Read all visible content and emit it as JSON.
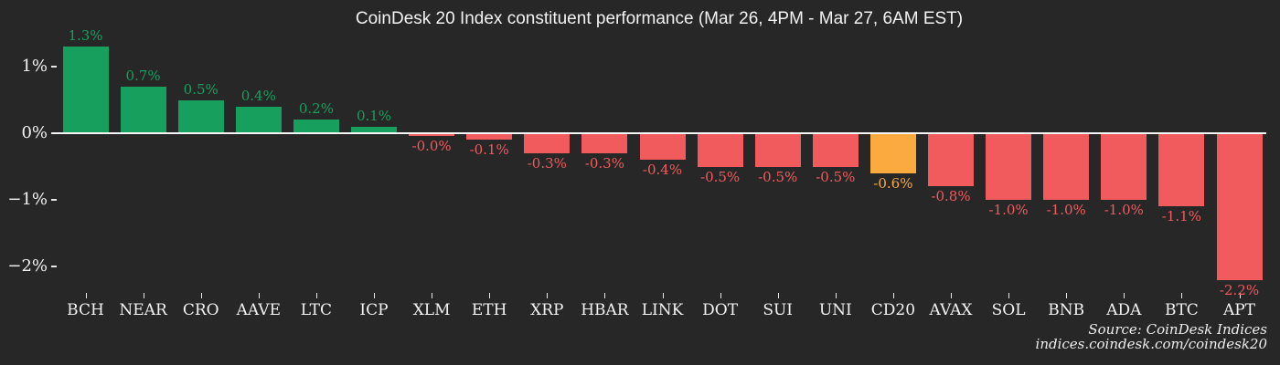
{
  "chart_data": {
    "type": "bar",
    "title": "CoinDesk 20 Index constituent performance (Mar 26, 4PM - Mar 27, 6AM EST)",
    "xlabel": "",
    "ylabel": "",
    "ylim": [
      -2.6,
      1.6
    ],
    "grid": false,
    "legend": "none",
    "categories": [
      "BCH",
      "NEAR",
      "CRO",
      "AAVE",
      "LTC",
      "ICP",
      "XLM",
      "ETH",
      "XRP",
      "HBAR",
      "LINK",
      "DOT",
      "SUI",
      "UNI",
      "CD20",
      "AVAX",
      "SOL",
      "BNB",
      "ADA",
      "BTC",
      "APT"
    ],
    "values": [
      1.3,
      0.7,
      0.5,
      0.4,
      0.2,
      0.1,
      -0.04,
      -0.1,
      -0.3,
      -0.3,
      -0.4,
      -0.5,
      -0.5,
      -0.5,
      -0.6,
      -0.8,
      -1.0,
      -1.0,
      -1.0,
      -1.1,
      -2.2
    ],
    "value_labels": [
      "1.3%",
      "0.7%",
      "0.5%",
      "0.4%",
      "0.2%",
      "0.1%",
      "-0.0%",
      "-0.1%",
      "-0.3%",
      "-0.3%",
      "-0.4%",
      "-0.5%",
      "-0.5%",
      "-0.5%",
      "-0.6%",
      "-0.8%",
      "-1.0%",
      "-1.0%",
      "-1.0%",
      "-1.1%",
      "-2.2%"
    ],
    "highlight_category": "CD20",
    "y_ticks": [
      {
        "label": "1%",
        "value": 1
      },
      {
        "label": "0%",
        "value": 0
      },
      {
        "label": "−1%",
        "value": -1
      },
      {
        "label": "−2%",
        "value": -2
      }
    ],
    "colors": {
      "positive": "#17a05d",
      "negative": "#f25b5e",
      "highlight": "#fbaa3f",
      "background": "#272727",
      "axis_line": "#f5f5f5",
      "text": "#f2f2f2"
    }
  },
  "source": {
    "line1": "Source: CoinDesk Indices",
    "line2": "indices.coindesk.com/coindesk20"
  }
}
